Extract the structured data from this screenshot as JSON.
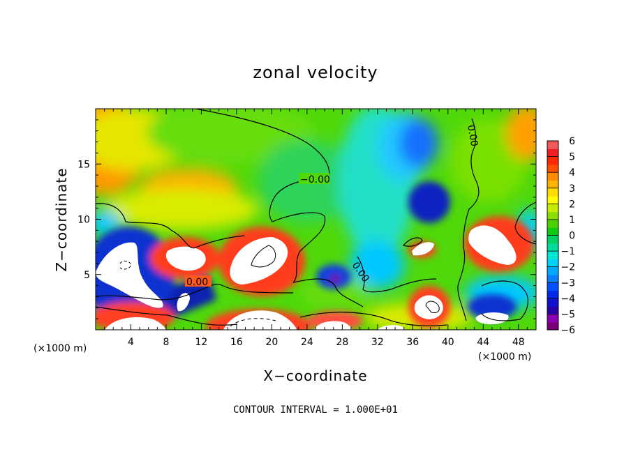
{
  "chart_data": {
    "type": "heatmap",
    "title": "zonal velocity",
    "xlabel": "X−coordinate",
    "ylabel": "Z−coordinate",
    "x_unit_left": "(×1000 m)",
    "x_unit_right": "(×1000 m)",
    "xlim": [
      0,
      50
    ],
    "ylim": [
      0,
      20
    ],
    "x_ticks": [
      "4",
      "8",
      "12",
      "16",
      "20",
      "24",
      "28",
      "32",
      "36",
      "40",
      "44",
      "48"
    ],
    "y_ticks": [
      "5",
      "10",
      "15"
    ],
    "colorbar_ticks": [
      "6",
      "5",
      "4",
      "3",
      "2",
      "1",
      "0",
      "−1",
      "−2",
      "−3",
      "−4",
      "−5",
      "−6"
    ],
    "colorbar_range": [
      -6,
      6
    ],
    "contour_label": "0.00",
    "contour_labels": [
      "−0.00",
      "0.00",
      "0.00",
      "0.00",
      "0.00"
    ],
    "footer": "CONTOUR INTERVAL = 1.000E+01",
    "colors": [
      "#7a007a",
      "#a000c8",
      "#1c00b4",
      "#0030e6",
      "#0a78ff",
      "#00b4ff",
      "#00e6e6",
      "#00dc8c",
      "#00d200",
      "#6edc00",
      "#d2f000",
      "#fff000",
      "#ffc800",
      "#ff8c00",
      "#ff3c00",
      "#f01414",
      "#f05050",
      "#f08c8c",
      "#ffffff"
    ],
    "features": [
      {
        "x": 3,
        "z": 17,
        "value": 3.2,
        "note": "upper-left orange patch"
      },
      {
        "x": 11,
        "z": 13.5,
        "value": 2.5
      },
      {
        "x": 23,
        "z": 17.5,
        "value": 0.4
      },
      {
        "x": 38,
        "z": 11,
        "value": -5.2
      },
      {
        "x": 36,
        "z": 17,
        "value": -3.0
      },
      {
        "x": 49,
        "z": 18,
        "value": 3.0
      },
      {
        "x": 3,
        "z": 5,
        "value": 7.5,
        "note": "white (>6) blob"
      },
      {
        "x": 10,
        "z": 6.8,
        "value": 7.0
      },
      {
        "x": 19,
        "z": 6.8,
        "value": 7.5
      },
      {
        "x": 45.5,
        "z": 7.5,
        "value": 7.5
      },
      {
        "x": 38,
        "z": 7.2,
        "value": 7.0
      },
      {
        "x": 38.5,
        "z": 2,
        "value": 7.0
      },
      {
        "x": 1.5,
        "z": 4,
        "value": -5.5
      },
      {
        "x": 27,
        "z": 4.2,
        "value": -5.3
      },
      {
        "x": 45,
        "z": 2,
        "value": -4.8
      }
    ]
  }
}
